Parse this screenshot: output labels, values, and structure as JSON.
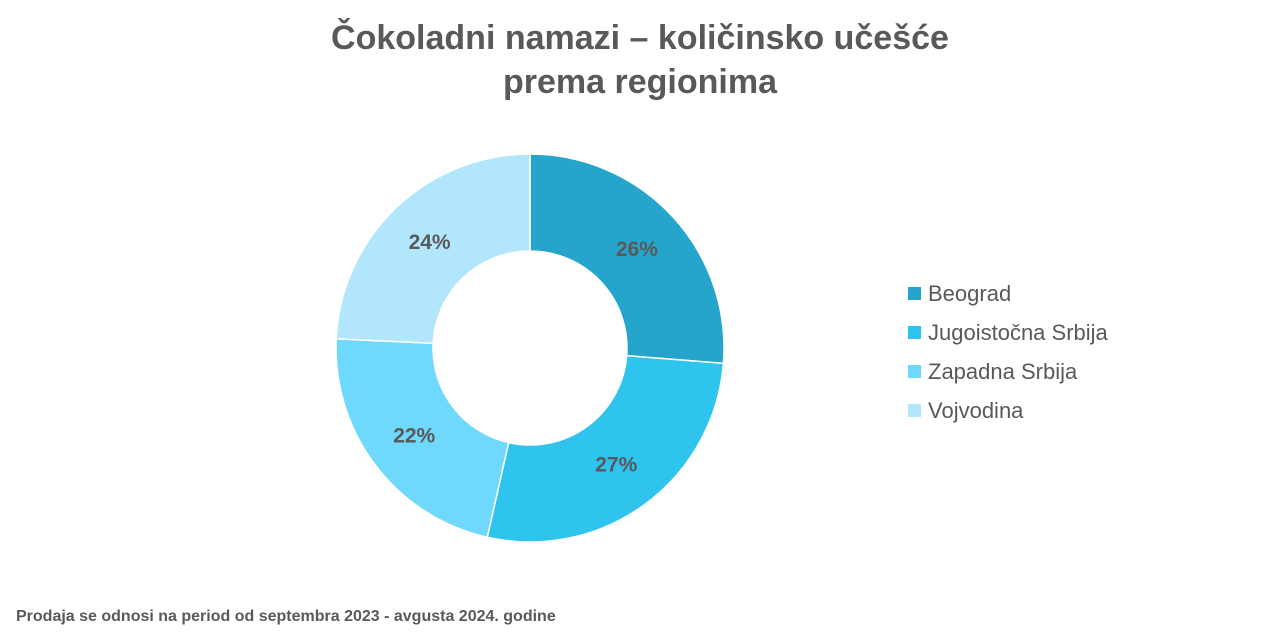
{
  "chart_data": {
    "type": "pie",
    "variant": "donut",
    "title": [
      "Čokoladni namazi – količinsko učešće",
      "prema regionima"
    ],
    "categories": [
      "Beograd",
      "Jugoistočna Srbija",
      "Zapadna Srbija",
      "Vojvodina"
    ],
    "values": [
      26,
      27,
      22,
      24
    ],
    "labels": [
      "26%",
      "27%",
      "22%",
      "24%"
    ],
    "colors": [
      "#26a5cc",
      "#2ec4ee",
      "#6fd8fd",
      "#b2e6fc"
    ],
    "legend_position": "right"
  },
  "footnote": "Prodaja se odnosi na period od septembra 2023  - avgusta 2024. godine"
}
